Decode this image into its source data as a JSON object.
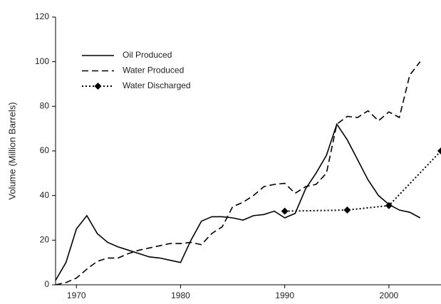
{
  "chart_data": {
    "type": "line",
    "ylabel": "Volume (Million Barrels)",
    "xlim": [
      1968,
      2005
    ],
    "xticks": [
      1970,
      1980,
      1990,
      2000
    ],
    "ylim": [
      0,
      120
    ],
    "yticks": [
      0,
      20,
      40,
      60,
      80,
      100,
      120
    ],
    "legend": "upper left",
    "series": [
      {
        "name": "Oil Produced",
        "color": "#000000",
        "style": "solid",
        "x": [
          1968,
          1969,
          1970,
          1971,
          1972,
          1973,
          1974,
          1975,
          1976,
          1977,
          1978,
          1979,
          1980,
          1981,
          1982,
          1983,
          1984,
          1985,
          1986,
          1987,
          1988,
          1989,
          1990,
          1991,
          1992,
          1993,
          1994,
          1995,
          1996,
          1997,
          1998,
          1999,
          2000,
          2001,
          2002,
          2003
        ],
        "values": [
          2,
          10,
          25,
          31,
          23,
          19,
          17,
          15.5,
          14,
          12.5,
          12,
          11,
          10,
          20,
          28.5,
          30.5,
          30.5,
          30,
          29,
          31,
          31.5,
          33,
          30,
          32,
          43,
          50,
          58,
          72,
          65,
          56,
          47,
          40,
          36,
          33.5,
          32.5,
          30
        ]
      },
      {
        "name": "Water Produced",
        "color": "#000000",
        "style": "dashed",
        "x": [
          1968,
          1969,
          1970,
          1971,
          1972,
          1973,
          1974,
          1975,
          1976,
          1977,
          1978,
          1979,
          1980,
          1981,
          1982,
          1983,
          1984,
          1985,
          1986,
          1987,
          1988,
          1989,
          1990,
          1991,
          1992,
          1993,
          1994,
          1995,
          1996,
          1997,
          1998,
          1999,
          2000,
          2001,
          2002,
          2003
        ],
        "values": [
          0,
          1,
          3,
          7,
          10.5,
          12,
          12,
          14,
          15.5,
          16.5,
          17.5,
          18.5,
          18.5,
          19,
          18,
          23,
          26,
          35,
          37,
          40,
          44,
          45,
          45.5,
          41,
          44,
          45,
          50,
          72,
          75.5,
          75,
          78,
          73.5,
          77.5,
          75,
          94,
          100
        ]
      },
      {
        "name": "Water Discharged",
        "color": "#000000",
        "style": "dotted",
        "marker": "diamond",
        "x": [
          1990,
          1996,
          2000,
          2005
        ],
        "values": [
          33,
          33.5,
          35.5,
          60
        ]
      }
    ]
  }
}
